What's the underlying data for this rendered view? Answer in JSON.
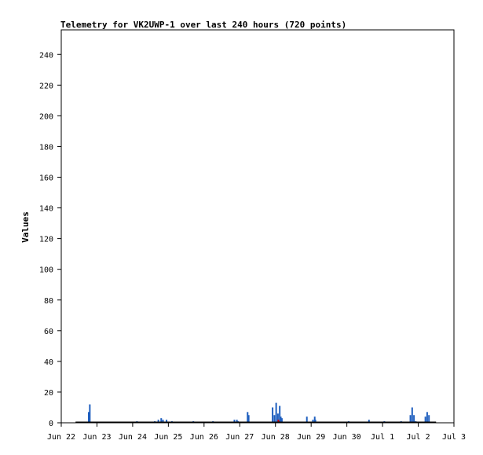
{
  "chart_data": {
    "type": "bar",
    "title": "Telemetry for VK2UWP-1 over last 240 hours (720 points)",
    "xlabel": "",
    "ylabel": "Values",
    "ylim": [
      0,
      256
    ],
    "y_ticks": [
      0,
      20,
      40,
      60,
      80,
      100,
      120,
      140,
      160,
      180,
      200,
      220,
      240
    ],
    "x_unit": "days since Jun 22 00:00",
    "xlim": [
      0,
      11
    ],
    "x_ticks": [
      {
        "x": 0,
        "label": "Jun 22"
      },
      {
        "x": 1,
        "label": "Jun 23"
      },
      {
        "x": 2,
        "label": "Jun 24"
      },
      {
        "x": 3,
        "label": "Jun 25"
      },
      {
        "x": 4,
        "label": "Jun 26"
      },
      {
        "x": 5,
        "label": "Jun 27"
      },
      {
        "x": 6,
        "label": "Jun 28"
      },
      {
        "x": 7,
        "label": "Jun 29"
      },
      {
        "x": 8,
        "label": "Jun 30"
      },
      {
        "x": 9,
        "label": "Jul 1"
      },
      {
        "x": 10,
        "label": "Jul 2"
      },
      {
        "x": 11,
        "label": "Jul 3"
      }
    ],
    "grid": false,
    "baseline": {
      "x_start": 0.4,
      "x_end": 10.5,
      "color": "#000000"
    },
    "series": [
      {
        "color": "#1f5fbf",
        "points": [
          [
            0.77,
            7
          ],
          [
            0.8,
            12
          ],
          [
            2.12,
            1
          ],
          [
            2.62,
            1
          ],
          [
            2.72,
            2
          ],
          [
            2.8,
            3
          ],
          [
            2.85,
            2
          ],
          [
            2.95,
            2
          ],
          [
            3.1,
            1
          ],
          [
            3.7,
            1
          ],
          [
            4.25,
            1
          ],
          [
            4.85,
            2
          ],
          [
            4.92,
            2
          ],
          [
            4.95,
            1
          ],
          [
            5.22,
            7
          ],
          [
            5.25,
            5
          ],
          [
            5.92,
            10
          ],
          [
            5.97,
            5
          ],
          [
            6.02,
            13
          ],
          [
            6.07,
            6
          ],
          [
            6.12,
            11
          ],
          [
            6.15,
            4
          ],
          [
            6.18,
            3
          ],
          [
            6.88,
            4
          ],
          [
            7.05,
            2
          ],
          [
            7.1,
            4
          ],
          [
            7.12,
            2
          ],
          [
            8.05,
            1
          ],
          [
            8.62,
            2
          ],
          [
            9.05,
            1
          ],
          [
            9.52,
            1
          ],
          [
            9.78,
            5
          ],
          [
            9.83,
            10
          ],
          [
            9.88,
            5
          ],
          [
            9.93,
            1
          ],
          [
            10.2,
            4
          ],
          [
            10.25,
            7
          ],
          [
            10.3,
            5
          ]
        ]
      },
      {
        "color": "#cc0000",
        "points": [
          [
            6.08,
            2
          ],
          [
            6.1,
            1
          ]
        ]
      }
    ]
  }
}
